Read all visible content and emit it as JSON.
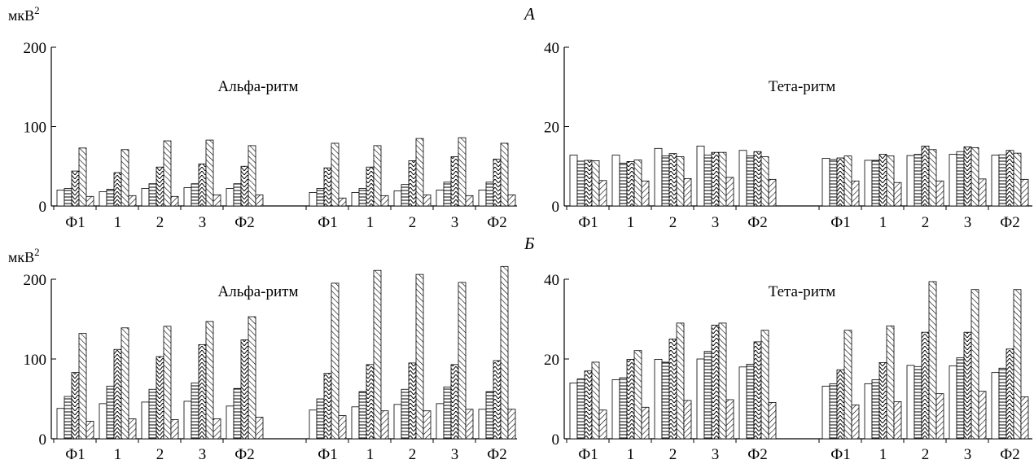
{
  "figure": {
    "panel_letters": [
      "А",
      "Б"
    ],
    "unit_label": "мкВ",
    "unit_superscript": "2"
  },
  "chart_data": [
    {
      "type": "bar",
      "id": "A-alpha",
      "row": "А",
      "title": "Альфа-ритм",
      "ylabel": "мкВ2",
      "ylim": [
        0,
        200
      ],
      "yticks": [
        0,
        100,
        200
      ],
      "groups": [
        {
          "categories": [
            "Ф1",
            "1",
            "2",
            "3",
            "Ф2"
          ],
          "values": [
            [
              20,
              22,
              44,
              73,
              12
            ],
            [
              18,
              21,
              42,
              71,
              13
            ],
            [
              22,
              28,
              49,
              82,
              12
            ],
            [
              23,
              28,
              53,
              83,
              14
            ],
            [
              22,
              28,
              50,
              76,
              14
            ]
          ]
        },
        {
          "categories": [
            "Ф1",
            "1",
            "2",
            "3",
            "Ф2"
          ],
          "values": [
            [
              17,
              22,
              48,
              79,
              10
            ],
            [
              17,
              22,
              49,
              76,
              13
            ],
            [
              19,
              27,
              57,
              85,
              14
            ],
            [
              20,
              30,
              62,
              86,
              13
            ],
            [
              20,
              30,
              59,
              79,
              14
            ]
          ]
        }
      ]
    },
    {
      "type": "bar",
      "id": "A-theta",
      "row": "А",
      "title": "Тета-ритм",
      "ylim": [
        0,
        40
      ],
      "yticks": [
        0,
        20,
        40
      ],
      "groups": [
        {
          "categories": [
            "Ф1",
            "1",
            "2",
            "3",
            "Ф2"
          ],
          "values": [
            [
              12.8,
              11.3,
              11.5,
              11.4,
              6.4
            ],
            [
              12.8,
              10.8,
              11.2,
              11.6,
              6.3
            ],
            [
              14.5,
              12.6,
              13.2,
              12.4,
              6.9
            ],
            [
              15.1,
              12.8,
              13.5,
              13.5,
              7.2
            ],
            [
              14,
              12.6,
              13.7,
              12.4,
              6.7
            ]
          ]
        },
        {
          "categories": [
            "Ф1",
            "1",
            "2",
            "3",
            "Ф2"
          ],
          "values": [
            [
              12,
              11.7,
              12.1,
              12.6,
              6.3
            ],
            [
              11.5,
              11.5,
              13,
              12.6,
              5.9
            ],
            [
              12.7,
              13,
              15.1,
              14.2,
              6.3
            ],
            [
              13,
              13.7,
              14.9,
              14.7,
              6.8
            ],
            [
              12.8,
              12.9,
              14,
              13.3,
              6.7
            ]
          ]
        }
      ]
    },
    {
      "type": "bar",
      "id": "B-alpha",
      "row": "Б",
      "title": "Альфа-ритм",
      "ylabel": "мкВ2",
      "ylim": [
        0,
        200
      ],
      "yticks": [
        0,
        100,
        200
      ],
      "groups": [
        {
          "categories": [
            "Ф1",
            "1",
            "2",
            "3",
            "Ф2"
          ],
          "values": [
            [
              38,
              53,
              83,
              132,
              22
            ],
            [
              44,
              66,
              112,
              139,
              25
            ],
            [
              46,
              62,
              103,
              141,
              24
            ],
            [
              47,
              70,
              118,
              147,
              25
            ],
            [
              41,
              63,
              124,
              153,
              27
            ]
          ]
        },
        {
          "categories": [
            "Ф1",
            "1",
            "2",
            "3",
            "Ф2"
          ],
          "values": [
            [
              36,
              50,
              82,
              195,
              29
            ],
            [
              40,
              59,
              93,
              211,
              35
            ],
            [
              43,
              62,
              95,
              206,
              35
            ],
            [
              44,
              65,
              93,
              196,
              37
            ],
            [
              37,
              59,
              98,
              216,
              37
            ]
          ]
        }
      ]
    },
    {
      "type": "bar",
      "id": "B-theta",
      "row": "Б",
      "title": "Тета-ритм",
      "ylim": [
        0,
        40
      ],
      "yticks": [
        0,
        20,
        40
      ],
      "groups": [
        {
          "categories": [
            "Ф1",
            "1",
            "2",
            "3",
            "Ф2"
          ],
          "values": [
            [
              14,
              15,
              17,
              19.2,
              7.2
            ],
            [
              14.8,
              15.3,
              19.9,
              22.1,
              7.9
            ],
            [
              19.9,
              19.2,
              25,
              29,
              9.6
            ],
            [
              20,
              21.9,
              28.5,
              29,
              9.8
            ],
            [
              18,
              18.7,
              24.3,
              27.2,
              9.1
            ]
          ]
        },
        {
          "categories": [
            "Ф1",
            "1",
            "2",
            "3",
            "Ф2"
          ],
          "values": [
            [
              13.2,
              13.8,
              17.3,
              27.2,
              8.5
            ],
            [
              13.8,
              14.8,
              19.1,
              28.3,
              9.3
            ],
            [
              18.4,
              18.1,
              26.7,
              39.4,
              11.3
            ],
            [
              18.3,
              20.3,
              26.7,
              37.4,
              11.9
            ],
            [
              16.6,
              17.7,
              22.5,
              37.4,
              10.5
            ]
          ]
        }
      ]
    }
  ]
}
